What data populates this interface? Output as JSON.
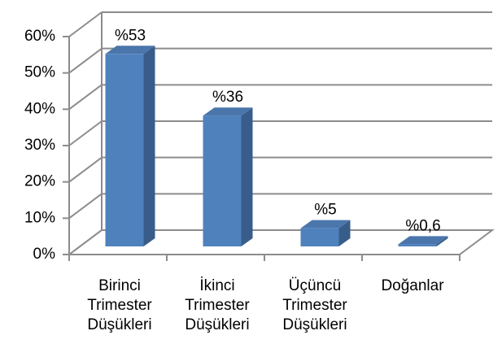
{
  "chart_data": {
    "type": "bar3d",
    "categories": [
      "Birinci\nTrimester\nDüşükleri",
      "İkinci\nTrimester\nDüşükleri",
      "Üçüncü\nTrimester\nDüşükleri",
      "Doğanlar"
    ],
    "values": [
      53,
      36,
      5,
      0.6
    ],
    "value_labels": [
      "%53",
      "%36",
      "%5",
      "%0,6"
    ],
    "color": "#4f81bd",
    "ylim": [
      0,
      60
    ],
    "yticks": [
      {
        "value": 0,
        "label": "0%"
      },
      {
        "value": 10,
        "label": "10%"
      },
      {
        "value": 20,
        "label": "20%"
      },
      {
        "value": 30,
        "label": "30%"
      },
      {
        "value": 40,
        "label": "40%"
      },
      {
        "value": 50,
        "label": "50%"
      },
      {
        "value": 60,
        "label": "60%"
      }
    ],
    "grid": true
  }
}
